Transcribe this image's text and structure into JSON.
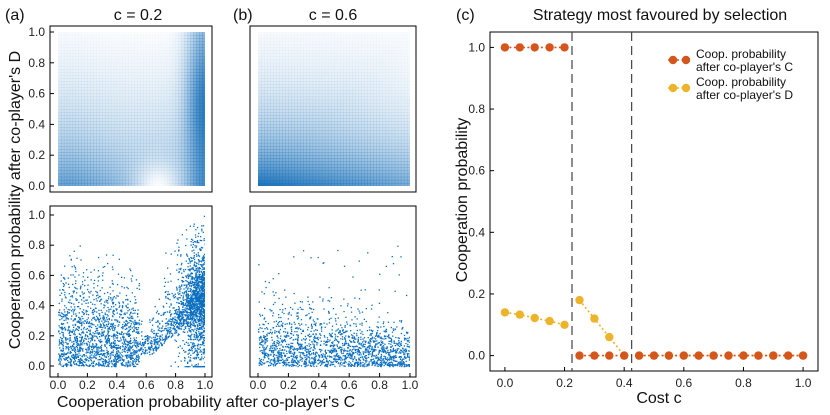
{
  "panels": {
    "a": {
      "label": "(a)",
      "title": "c = 0.2"
    },
    "b": {
      "label": "(b)",
      "title": "c = 0.6"
    },
    "c": {
      "label": "(c)",
      "title": "Strategy most favoured by selection"
    }
  },
  "left_axes": {
    "xlabel": "Cooperation probability after co-player's C",
    "ylabel": "Cooperation probability after co-player's D",
    "ticks": [
      "0.0",
      "0.2",
      "0.4",
      "0.6",
      "0.8",
      "1.0"
    ]
  },
  "colors": {
    "heat": "#1f74bb",
    "scatter": "#0b6fc0",
    "series_c": "#d4561c",
    "series_d": "#edb42b",
    "frame": "#000000",
    "dashed": "#444444"
  },
  "chart_data": [
    {
      "type": "heatmap",
      "panel": "a",
      "title": "c = 0.2",
      "xlim": [
        0,
        1
      ],
      "ylim": [
        0,
        1
      ],
      "description_values": "density high near y=0 at x=0, high along x=1 around y=0.4-0.8, low near x=0.65 y=0"
    },
    {
      "type": "heatmap",
      "panel": "b",
      "title": "c = 0.6",
      "xlim": [
        0,
        1
      ],
      "ylim": [
        0,
        1
      ],
      "description_values": "density concentrated near y=0, fading upward and toward x=1, y=1"
    },
    {
      "type": "scatter",
      "panel": "a-bottom",
      "xlim": [
        0,
        1
      ],
      "ylim": [
        0,
        1
      ],
      "n_points": 3500
    },
    {
      "type": "scatter",
      "panel": "b-bottom",
      "xlim": [
        0,
        1
      ],
      "ylim": [
        0,
        1
      ],
      "n_points": 1800
    },
    {
      "type": "line",
      "panel": "c",
      "title": "Strategy most favoured by selection",
      "xlabel": "Cost c",
      "ylabel": "Cooperation probability",
      "xlim": [
        -0.05,
        1.05
      ],
      "ylim": [
        -0.05,
        1.05
      ],
      "xticks": [
        "0.0",
        "0.2",
        "0.4",
        "0.6",
        "0.8",
        "1.0"
      ],
      "yticks": [
        "0.0",
        "0.2",
        "0.4",
        "0.6",
        "0.8",
        "1.0"
      ],
      "vlines": [
        0.225,
        0.425
      ],
      "series": [
        {
          "name": "Coop. probability after co-player's C",
          "legend": [
            "Coop. probability",
            "after co-player's C"
          ],
          "segments": [
            [
              [
                0.0,
                1.0
              ],
              [
                0.05,
                1.0
              ],
              [
                0.1,
                1.0
              ],
              [
                0.15,
                1.0
              ],
              [
                0.2,
                1.0
              ]
            ],
            [
              [
                0.25,
                0.0
              ],
              [
                0.3,
                0.0
              ],
              [
                0.35,
                0.0
              ],
              [
                0.4,
                0.0
              ]
            ],
            [
              [
                0.45,
                0.0
              ],
              [
                0.5,
                0.0
              ],
              [
                0.55,
                0.0
              ],
              [
                0.6,
                0.0
              ],
              [
                0.65,
                0.0
              ],
              [
                0.7,
                0.0
              ],
              [
                0.75,
                0.0
              ],
              [
                0.8,
                0.0
              ],
              [
                0.85,
                0.0
              ],
              [
                0.9,
                0.0
              ],
              [
                0.95,
                0.0
              ],
              [
                1.0,
                0.0
              ]
            ]
          ]
        },
        {
          "name": "Coop. probability after co-player's D",
          "legend": [
            "Coop. probability",
            "after co-player's D"
          ],
          "segments": [
            [
              [
                0.0,
                0.14
              ],
              [
                0.05,
                0.133
              ],
              [
                0.1,
                0.122
              ],
              [
                0.15,
                0.112
              ],
              [
                0.2,
                0.1
              ]
            ],
            [
              [
                0.25,
                0.18
              ],
              [
                0.3,
                0.12
              ],
              [
                0.35,
                0.06
              ],
              [
                0.4,
                0.0
              ]
            ],
            [
              [
                0.45,
                0.0
              ],
              [
                0.5,
                0.0
              ],
              [
                0.55,
                0.0
              ],
              [
                0.6,
                0.0
              ],
              [
                0.65,
                0.0
              ],
              [
                0.7,
                0.0
              ],
              [
                0.75,
                0.0
              ],
              [
                0.8,
                0.0
              ],
              [
                0.85,
                0.0
              ],
              [
                0.9,
                0.0
              ],
              [
                0.95,
                0.0
              ],
              [
                1.0,
                0.0
              ]
            ]
          ]
        }
      ]
    }
  ]
}
